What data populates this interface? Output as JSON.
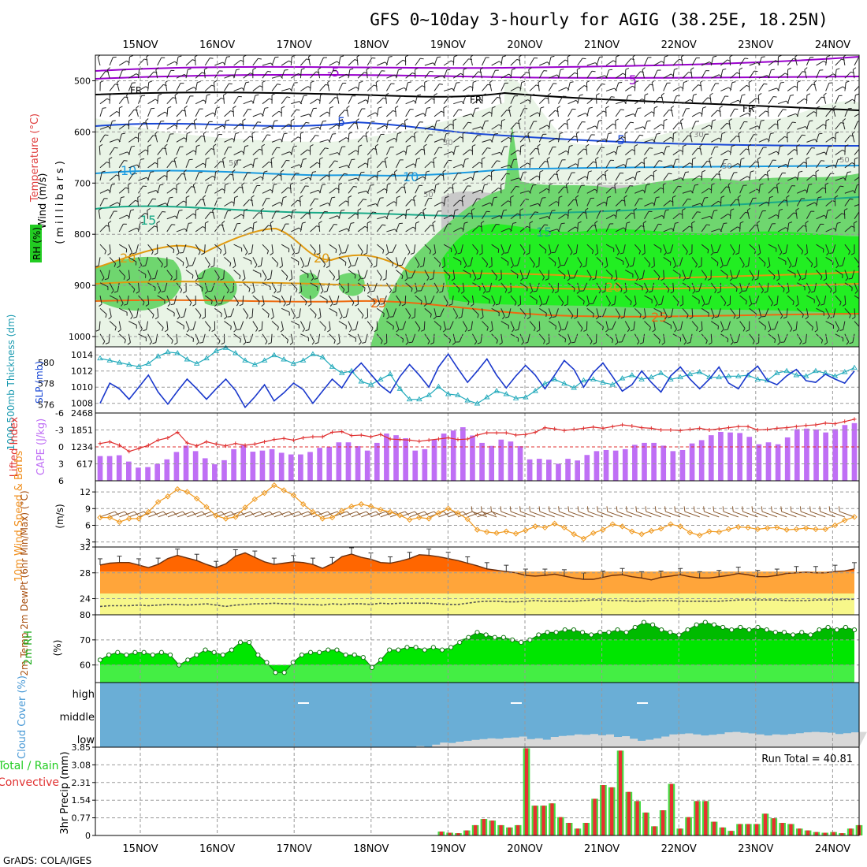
{
  "title": "GFS 0~10day 3-hourly for AGIG (38.25E, 18.25N)",
  "footer": "GrADS: COLA/IGES",
  "dates": [
    "15NOV",
    "16NOV",
    "17NOV",
    "18NOV",
    "19NOV",
    "20NOV",
    "21NOV",
    "22NOV",
    "23NOV",
    "24NOV"
  ],
  "colors": {
    "frame": "#000000",
    "grid": "#888888",
    "green_bright": "#00ee00",
    "green_mid": "#3fcf3f",
    "rh_dry": "#a8a8a8",
    "cloud": "#6aaed6",
    "cloud_low": "#d8d8d8",
    "cape": "#bf6ff5",
    "li": "#e03030",
    "orange": "#ff6600",
    "light_orange": "#ffa53a",
    "yellow": "#f7f78a",
    "precip_red": "#e83030"
  },
  "chart_data": [
    {
      "type": "contour",
      "name": "upper-air",
      "ylabel": "(millibars)",
      "side_labels": [
        "Wind (m/s)",
        "Temperature (°C)",
        "RH (%)"
      ],
      "y_ticks": [
        500,
        600,
        700,
        800,
        900,
        1000
      ],
      "ylim": [
        450,
        1020
      ],
      "temp_contour_labels": [
        "-5",
        "-5",
        "FR",
        "FR",
        "FR",
        "5",
        "5",
        "10",
        "10",
        "15",
        "15",
        "20",
        "20",
        "20",
        "25",
        "25"
      ],
      "rh_contour_labels": [
        "50",
        "50",
        "50",
        "30",
        "30",
        "50"
      ]
    },
    {
      "type": "line",
      "name": "thickness-slp",
      "ylabel_left": "1000-500mb Thickness (dm)",
      "ylabel_right": "SLP (mb)",
      "y_left_ticks": [
        576,
        578,
        580
      ],
      "y_left_lim": [
        575.2,
        581.5
      ],
      "y_right_ticks": [
        1008,
        1010,
        1012,
        1014
      ],
      "y_right_lim": [
        1006.8,
        1015
      ],
      "series": [
        {
          "name": "thickness",
          "values": [
            580.4,
            580.2,
            580.0,
            579.8,
            579.6,
            579.9,
            580.6,
            581.0,
            580.9,
            580.3,
            579.9,
            580.4,
            581.1,
            581.4,
            580.9,
            580.2,
            579.8,
            580.2,
            580.7,
            580.3,
            579.9,
            580.2,
            580.8,
            580.5,
            579.6,
            579.0,
            579.2,
            578.2,
            577.9,
            578.4,
            578.9,
            577.5,
            576.5,
            576.5,
            576.9,
            577.7,
            577.0,
            576.9,
            576.4,
            576.1,
            576.7,
            577.3,
            577.0,
            576.6,
            576.7,
            577.3,
            578.0,
            578.4,
            578.0,
            577.6,
            578.3,
            578.4,
            578.1,
            577.9,
            578.5,
            578.8,
            578.4,
            578.6,
            579.0,
            578.4,
            578.6,
            578.9,
            579.1,
            578.6,
            578.6,
            578.7,
            578.7,
            578.8,
            578.4,
            578.3,
            579.0,
            579.2,
            578.8,
            578.7,
            579.2,
            579.0,
            578.7,
            579.1,
            579.5
          ]
        },
        {
          "name": "SLP",
          "values": [
            1008.0,
            1010.5,
            1009.8,
            1008.5,
            1010.0,
            1011.5,
            1009.4,
            1007.9,
            1009.5,
            1011.0,
            1009.8,
            1008.5,
            1009.8,
            1011.0,
            1009.6,
            1007.5,
            1008.8,
            1010.3,
            1008.3,
            1009.3,
            1010.5,
            1009.7,
            1008.0,
            1009.5,
            1011.0,
            1009.9,
            1011.8,
            1013.0,
            1011.6,
            1010.2,
            1009.3,
            1011.3,
            1012.8,
            1011.5,
            1010.0,
            1012.5,
            1014.1,
            1012.3,
            1010.6,
            1012.0,
            1013.5,
            1011.5,
            1009.9,
            1011.4,
            1012.7,
            1011.5,
            1009.8,
            1011.5,
            1013.3,
            1012.2,
            1010.0,
            1011.8,
            1013.0,
            1011.3,
            1009.5,
            1010.3,
            1012.0,
            1010.6,
            1009.4,
            1011.4,
            1012.5,
            1011.0,
            1009.8,
            1011.0,
            1012.5,
            1010.5,
            1009.8,
            1011.6,
            1012.6,
            1010.8,
            1010.3,
            1011.4,
            1012.2,
            1010.8,
            1010.6,
            1011.6,
            1011.0,
            1010.5,
            1012.0
          ]
        }
      ]
    },
    {
      "type": "bar",
      "name": "lifted-index-cape",
      "ylabel_left": "Lifted Index",
      "ylabel_right": "CAPE (J/kg)",
      "y_left_ticks": [
        "-6",
        "-3",
        "0",
        "3",
        "6"
      ],
      "y_left_lim": [
        6,
        -6
      ],
      "y_right_ticks": [
        "617",
        "1234",
        "1851",
        "2468"
      ],
      "y_right_lim": [
        0,
        2468
      ],
      "series": [
        {
          "name": "CAPE",
          "values": [
            900,
            900,
            930,
            700,
            480,
            500,
            620,
            780,
            1050,
            1280,
            1080,
            820,
            600,
            750,
            1150,
            1300,
            1060,
            1100,
            1150,
            1020,
            960,
            960,
            1050,
            1200,
            1240,
            1400,
            1400,
            1260,
            1100,
            1380,
            1720,
            1660,
            1550,
            1100,
            1150,
            1500,
            1720,
            1830,
            1950,
            1650,
            1380,
            1270,
            1500,
            1430,
            1260,
            780,
            800,
            770,
            620,
            800,
            740,
            940,
            1080,
            1120,
            1100,
            1150,
            1310,
            1380,
            1380,
            1280,
            1080,
            1120,
            1360,
            1480,
            1660,
            1780,
            1760,
            1740,
            1600,
            1330,
            1400,
            1330,
            1580,
            1880,
            1900,
            1870,
            1760,
            1880,
            2030,
            2100
          ]
        },
        {
          "name": "lifted index",
          "values": [
            -0.6,
            -0.9,
            -0.3,
            0.8,
            0.3,
            -0.3,
            -1.2,
            -1.6,
            -2.6,
            -0.7,
            -0.2,
            -0.9,
            -0.5,
            -0.2,
            -0.6,
            -0.3,
            -0.5,
            -0.9,
            -1.3,
            -1.5,
            -1.2,
            -1.6,
            -1.8,
            -1.8,
            -2.6,
            -2.7,
            -2.0,
            -2.1,
            -1.8,
            -2.2,
            -1.4,
            -1.3,
            -1.2,
            -1.0,
            -1.2,
            -1.4,
            -1.6,
            -1.3,
            -1.4,
            -2.1,
            -2.5,
            -2.5,
            -2.5,
            -2.1,
            -2.2,
            -2.6,
            -3.4,
            -3.2,
            -2.9,
            -3.1,
            -3.3,
            -3.5,
            -3.3,
            -3.6,
            -3.9,
            -3.7,
            -3.4,
            -3.3,
            -3.0,
            -3.0,
            -2.9,
            -3.1,
            -3.3,
            -3.0,
            -3.2,
            -3.4,
            -3.6,
            -3.6,
            -3.0,
            -3.1,
            -3.3,
            -3.4,
            -3.6,
            -3.8,
            -3.9,
            -4.2,
            -4.1,
            -4.5,
            -4.9
          ]
        }
      ]
    },
    {
      "type": "line",
      "name": "10m-wind",
      "ylabel_left": "10m Wind Speed & Barbs",
      "ylabel_right": "(m/s)",
      "y_ticks": [
        3,
        6,
        9,
        12
      ],
      "ylim": [
        2.1,
        14
      ],
      "series": [
        {
          "name": "wind speed",
          "values": [
            7.4,
            7.4,
            6.6,
            7.2,
            7.2,
            8.4,
            10.2,
            11.2,
            12.5,
            12.0,
            10.8,
            9.3,
            7.7,
            7.2,
            7.5,
            9.2,
            10.7,
            11.8,
            13.2,
            12.3,
            11.4,
            9.8,
            8.4,
            7.2,
            7.4,
            8.6,
            9.4,
            9.8,
            9.4,
            8.8,
            8.4,
            7.8,
            7.0,
            7.4,
            7.2,
            8.2,
            9.0,
            8.2,
            7.1,
            5.2,
            4.8,
            4.6,
            4.9,
            4.5,
            5.1,
            5.8,
            5.6,
            6.3,
            5.6,
            4.4,
            3.6,
            4.6,
            5.2,
            6.2,
            5.8,
            4.9,
            4.4,
            5.0,
            5.4,
            6.2,
            5.8,
            4.7,
            4.2,
            4.9,
            4.8,
            5.3,
            5.7,
            5.6,
            5.3,
            5.5,
            5.6,
            5.2,
            5.3,
            5.5,
            5.3,
            5.3,
            6.0,
            6.9,
            7.5
          ]
        }
      ]
    },
    {
      "type": "area",
      "name": "2m-temperature",
      "ylabel": "2m Temp 2m DewPt (6hr Min/Max) (°C)",
      "y_ticks": [
        24,
        28,
        32
      ],
      "ylim": [
        21.5,
        32
      ],
      "series": [
        {
          "name": "2m temp",
          "values": [
            29.2,
            29.5,
            29.6,
            29.6,
            29.2,
            28.8,
            29.3,
            30.2,
            30.7,
            30.3,
            29.9,
            29.3,
            28.8,
            29.4,
            30.6,
            31.1,
            30.4,
            29.7,
            29.3,
            29.5,
            29.7,
            29.6,
            29.3,
            28.7,
            29.4,
            30.5,
            30.9,
            30.4,
            30.1,
            29.6,
            29.5,
            29.8,
            30.2,
            30.8,
            30.7,
            30.5,
            30.2,
            29.9,
            29.5,
            29.1,
            28.6,
            28.4,
            28.2,
            28.0,
            27.6,
            27.5,
            27.6,
            27.8,
            27.5,
            27.2,
            27.0,
            27.0,
            27.3,
            27.6,
            27.7,
            27.4,
            27.2,
            26.9,
            27.3,
            27.5,
            27.7,
            27.4,
            27.2,
            27.2,
            27.4,
            27.6,
            27.9,
            27.7,
            27.4,
            27.4,
            27.6,
            27.9,
            28.0,
            28.1,
            28.0,
            28.0,
            28.2,
            28.3,
            28.6
          ]
        },
        {
          "name": "2m dewpt",
          "values": [
            22.8,
            22.9,
            22.9,
            22.9,
            23.0,
            22.9,
            23.0,
            23.1,
            23.1,
            23.0,
            23.1,
            23.2,
            23.0,
            22.8,
            23.0,
            23.1,
            23.2,
            23.2,
            23.3,
            23.2,
            23.2,
            23.1,
            23.1,
            23.0,
            23.2,
            23.1,
            23.2,
            23.2,
            23.1,
            23.3,
            23.2,
            23.3,
            23.3,
            23.3,
            23.3,
            23.2,
            23.1,
            23.1,
            23.3,
            23.5,
            23.6,
            23.6,
            23.5,
            23.5,
            23.6,
            23.7,
            23.6,
            23.6,
            23.6,
            23.6,
            23.7,
            23.8,
            23.8,
            23.7,
            23.7,
            23.6,
            23.6,
            23.7,
            23.7,
            23.7,
            23.6,
            23.6,
            23.6,
            23.6,
            23.6,
            23.7,
            23.8,
            23.8,
            23.8,
            23.8,
            23.8,
            23.7,
            23.7,
            23.7,
            23.8,
            23.8,
            23.8,
            23.9,
            23.9
          ]
        }
      ]
    },
    {
      "type": "area",
      "name": "2m-rh",
      "ylabel": "2m RH",
      "ylabel_right": "(%)",
      "y_ticks": [
        60,
        70,
        80
      ],
      "ylim": [
        53,
        80
      ],
      "series": [
        {
          "name": "2m RH",
          "values": [
            62,
            64,
            65,
            64,
            65,
            65,
            64,
            65,
            64,
            60,
            62,
            64,
            66,
            65,
            64,
            66,
            69,
            69,
            64,
            61,
            57,
            57,
            61,
            64,
            65,
            65,
            66,
            66,
            64,
            64,
            63,
            59,
            62,
            66,
            66,
            67,
            67,
            66,
            67,
            66,
            67,
            69,
            71,
            73,
            72,
            71,
            71,
            70,
            69,
            70,
            72,
            73,
            73,
            74,
            74,
            73,
            72,
            73,
            73,
            74,
            73,
            75,
            77,
            76,
            74,
            73,
            72,
            74,
            76,
            77,
            76,
            75,
            74,
            75,
            74,
            75,
            74,
            73,
            73,
            72,
            73,
            72,
            74,
            75,
            74,
            75,
            74
          ]
        }
      ]
    },
    {
      "type": "area",
      "name": "cloud-cover",
      "ylabel": "Cloud Cover (%)",
      "y_ticks": [
        "high",
        "middle",
        "low"
      ],
      "series": [
        {
          "name": "low cloud",
          "values": [
            0,
            0,
            0,
            0,
            0,
            0,
            0,
            0,
            0,
            0,
            0,
            0,
            0,
            0,
            0,
            0,
            0,
            0,
            0,
            0,
            0,
            0,
            0,
            0,
            0,
            0,
            0,
            0,
            0,
            0,
            0,
            0,
            0,
            0,
            0,
            0,
            0,
            0,
            0,
            0,
            5,
            0,
            12,
            22,
            20,
            26,
            30,
            34,
            38,
            42,
            40,
            44,
            46,
            50,
            38,
            42,
            35,
            48,
            53,
            55,
            60,
            58,
            62,
            56,
            60,
            48,
            52,
            40,
            30,
            35,
            42,
            50,
            60,
            62,
            65,
            60,
            55,
            58,
            62,
            70,
            72,
            68,
            65,
            60,
            55,
            60,
            58,
            62,
            66,
            70,
            72,
            70,
            68,
            62,
            66,
            70,
            72
          ]
        }
      ]
    },
    {
      "type": "bar",
      "name": "3hr-precip",
      "ylabel": "3hr Precip (mm)",
      "side_labels": [
        "Total / Rain",
        "Convective"
      ],
      "annotation": "Run Total = 40.81",
      "y_ticks": [
        "0",
        "0.77",
        "1.54",
        "2.31",
        "3.08",
        "3.85"
      ],
      "ylim": [
        0,
        3.85
      ],
      "series": [
        {
          "name": "3hr precip",
          "values": [
            0,
            0,
            0,
            0,
            0,
            0,
            0,
            0,
            0,
            0,
            0,
            0,
            0,
            0,
            0,
            0,
            0,
            0,
            0,
            0,
            0,
            0,
            0,
            0,
            0,
            0,
            0,
            0,
            0,
            0,
            0,
            0,
            0,
            0,
            0,
            0,
            0,
            0,
            0,
            0,
            0.17,
            0.12,
            0.1,
            0.22,
            0.45,
            0.72,
            0.65,
            0.45,
            0.35,
            0.45,
            3.8,
            1.3,
            1.3,
            1.4,
            0.8,
            0.55,
            0.3,
            0.55,
            1.6,
            2.2,
            2.1,
            3.7,
            1.9,
            1.5,
            1.0,
            0.4,
            1.1,
            2.25,
            0.3,
            0.8,
            1.5,
            1.5,
            0.6,
            0.35,
            0.2,
            0.5,
            0.5,
            0.5,
            0.95,
            0.75,
            0.55,
            0.5,
            0.3,
            0.22,
            0.15,
            0.12,
            0.15,
            0.1,
            0.3,
            0.45
          ]
        }
      ]
    }
  ]
}
